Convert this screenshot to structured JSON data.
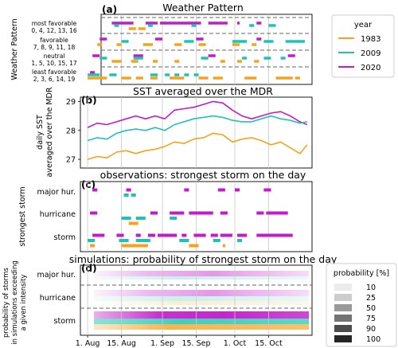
{
  "colors": {
    "y1983": "#f5a21e",
    "y2009": "#1ec3b4",
    "y2020": "#c21bc9"
  },
  "legend": {
    "title": "year",
    "entries": [
      {
        "label": "1983",
        "color": "#f5a21e"
      },
      {
        "label": "2009",
        "color": "#1ec3b4"
      },
      {
        "label": "2020",
        "color": "#c21bc9"
      }
    ]
  },
  "prob_legend": {
    "title": "probability [%]",
    "levels": [
      "10",
      "25",
      "50",
      "75",
      "90",
      "100"
    ]
  },
  "x_axis": {
    "labels": [
      "1. Aug",
      "15. Aug",
      "1. Sep",
      "15. Sep",
      "1. Oct",
      "15. Oct"
    ],
    "days": [
      0,
      14,
      31,
      45,
      61,
      75
    ],
    "range": [
      -3,
      93
    ]
  },
  "chart_data": [
    {
      "panel": "(a)",
      "type": "event-raster",
      "title": "Weather Pattern",
      "ylabel": "Weather Pattern",
      "categories": [
        {
          "name": "most favorable",
          "codes": "0, 4, 12, 13, 16"
        },
        {
          "name": "favorable",
          "codes": "7, 8, 9, 11, 18"
        },
        {
          "name": "neutral",
          "codes": "1, 5, 10, 15, 17"
        },
        {
          "name": "least favorable",
          "codes": "2, 3, 6, 14, 19"
        }
      ],
      "series": [
        {
          "name": "2020",
          "color": "#c21bc9",
          "rows": [
            [
              [
                10,
                19
              ],
              [
                24,
                29
              ],
              [
                30,
                47
              ],
              [
                50,
                58
              ],
              [
                62,
                63
              ],
              [
                70,
                72
              ]
            ],
            [
              [
                5,
                8
              ],
              [
                28,
                31
              ],
              [
                45,
                48
              ],
              [
                70,
                72
              ]
            ],
            [
              [
                2,
                5
              ],
              [
                19,
                23
              ],
              [
                50,
                53
              ],
              [
                83,
                86
              ]
            ],
            [
              [
                1,
                3
              ]
            ]
          ]
        },
        {
          "name": "2009",
          "color": "#1ec3b4",
          "rows": [
            [
              [
                11,
                13
              ],
              [
                25,
                27
              ],
              [
                43,
                45
              ],
              [
                67,
                69
              ],
              [
                75,
                78
              ]
            ],
            [
              [
                14,
                17
              ],
              [
                40,
                44
              ],
              [
                60,
                66
              ],
              [
                73,
                77
              ],
              [
                82,
                90
              ]
            ],
            [
              [
                5,
                8
              ],
              [
                19,
                23
              ],
              [
                47,
                50
              ],
              [
                64,
                66
              ],
              [
                73,
                76
              ],
              [
                80,
                82
              ]
            ],
            [
              [
                0,
                5
              ],
              [
                9,
                12
              ],
              [
                26,
                29
              ],
              [
                32,
                34
              ],
              [
                36,
                38
              ],
              [
                40,
                42
              ],
              [
                44,
                46
              ]
            ]
          ]
        },
        {
          "name": "1983",
          "color": "#f5a21e",
          "rows": [
            [
              [
                17,
                20
              ],
              [
                21,
                24
              ]
            ],
            [
              [
                4,
                6
              ],
              [
                12,
                14
              ],
              [
                23,
                27
              ],
              [
                36,
                39
              ],
              [
                46,
                49
              ],
              [
                60,
                63
              ],
              [
                68,
                70
              ]
            ],
            [
              [
                10,
                14
              ],
              [
                18,
                21
              ],
              [
                27,
                29
              ],
              [
                36,
                38
              ],
              [
                55,
                57
              ],
              [
                62,
                64
              ],
              [
                69,
                71
              ]
            ],
            [
              [
                0,
                8
              ],
              [
                14,
                18
              ],
              [
                20,
                23
              ],
              [
                26,
                29
              ],
              [
                34,
                40
              ],
              [
                46,
                50
              ],
              [
                52,
                56
              ],
              [
                65,
                70
              ],
              [
                78,
                85
              ],
              [
                86,
                88
              ]
            ]
          ]
        }
      ]
    },
    {
      "panel": "(b)",
      "type": "line",
      "title": "SST averaged over the MDR",
      "ylabel": "daily SST averaged over the MDR",
      "ylim": [
        26.7,
        29.15
      ],
      "yticks": [
        27,
        28,
        29
      ],
      "x": [
        0,
        4,
        8,
        12,
        16,
        20,
        24,
        28,
        32,
        36,
        40,
        44,
        48,
        52,
        56,
        60,
        64,
        68,
        72,
        76,
        80,
        84,
        88,
        91
      ],
      "series": [
        {
          "name": "2020",
          "color": "#c21bc9",
          "values": [
            28.1,
            28.25,
            28.2,
            28.3,
            28.4,
            28.5,
            28.4,
            28.5,
            28.4,
            28.7,
            28.75,
            28.8,
            28.9,
            29.0,
            28.95,
            28.7,
            28.5,
            28.4,
            28.5,
            28.6,
            28.65,
            28.5,
            28.3,
            28.2
          ]
        },
        {
          "name": "2009",
          "color": "#1ec3b4",
          "values": [
            27.65,
            27.75,
            27.7,
            27.9,
            28.0,
            28.05,
            28.0,
            28.1,
            28.0,
            28.2,
            28.3,
            28.4,
            28.45,
            28.5,
            28.45,
            28.35,
            28.3,
            28.3,
            28.4,
            28.5,
            28.4,
            28.35,
            28.25,
            28.3
          ]
        },
        {
          "name": "1983",
          "color": "#f5a21e",
          "values": [
            27.0,
            27.1,
            27.05,
            27.25,
            27.3,
            27.2,
            27.3,
            27.35,
            27.45,
            27.6,
            27.55,
            27.7,
            27.75,
            27.9,
            27.85,
            27.6,
            27.7,
            27.75,
            27.65,
            27.5,
            27.6,
            27.4,
            27.2,
            27.5
          ]
        }
      ]
    },
    {
      "panel": "(c)",
      "type": "event-raster",
      "title": "observations: strongest storm on the day",
      "ylabel": "strongest storm",
      "categories": [
        {
          "name": "major hur."
        },
        {
          "name": "hurricane"
        },
        {
          "name": "storm"
        }
      ],
      "series": [
        {
          "name": "2020",
          "color": "#c21bc9",
          "rows": [
            [
              [
                2,
                4
              ],
              [
                16,
                18
              ],
              [
                40,
                42
              ],
              [
                54,
                57
              ],
              [
                61,
                63
              ],
              [
                73,
                76
              ]
            ],
            [
              [
                1,
                4
              ],
              [
                26,
                29
              ],
              [
                34,
                40
              ],
              [
                42,
                52
              ],
              [
                55,
                58
              ],
              [
                70,
                73
              ],
              [
                74,
                83
              ]
            ],
            [
              [
                2,
                7
              ],
              [
                12,
                15
              ],
              [
                20,
                22
              ],
              [
                25,
                28
              ],
              [
                29,
                37
              ],
              [
                39,
                41
              ],
              [
                44,
                49
              ],
              [
                51,
                54
              ],
              [
                55,
                60
              ],
              [
                62,
                66
              ],
              [
                70,
                85
              ]
            ]
          ]
        },
        {
          "name": "2009",
          "color": "#1ec3b4",
          "rows": [
            [
              [
                15,
                17
              ],
              [
                18,
                20
              ]
            ],
            [
              [
                14,
                18
              ],
              [
                20,
                24
              ],
              [
                34,
                37
              ]
            ],
            [
              [
                0,
                3
              ],
              [
                13,
                17
              ],
              [
                20,
                26
              ],
              [
                38,
                42
              ],
              [
                52,
                55
              ],
              [
                62,
                64
              ]
            ]
          ]
        },
        {
          "name": "1983",
          "color": "#f5a21e",
          "rows": [
            [],
            [
              [
                17,
                21
              ]
            ],
            [
              [
                1,
                3
              ],
              [
                14,
                25
              ],
              [
                42,
                46
              ],
              [
                56,
                57
              ]
            ]
          ]
        }
      ]
    },
    {
      "panel": "(d)",
      "type": "heatmap",
      "title": "simulations: probability of strongest storm on the day",
      "ylabel": "probability of storms in simulations exceeding a given intensity",
      "categories": [
        {
          "name": "major hur."
        },
        {
          "name": "hurricane"
        },
        {
          "name": "storm"
        }
      ]
    }
  ]
}
